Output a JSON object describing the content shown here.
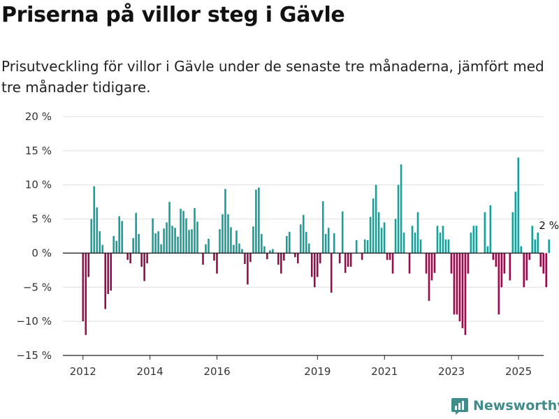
{
  "title": "Priserna på villor steg i Gävle",
  "subtitle": "Prisutveckling för villor i Gävle under de senaste tre månaderna, jämfört med tre månader tidigare.",
  "brand": "Newsworthy",
  "colors": {
    "positive": "#13a19a",
    "negative": "#9b0a4a",
    "grid": "#dddddd",
    "axis": "#222222",
    "brand": "#3f8c8a"
  },
  "chart_data": {
    "type": "bar",
    "ylim": [
      -15,
      20
    ],
    "yticks": [
      {
        "value": 20,
        "label": "20 %"
      },
      {
        "value": 15,
        "label": "15 %"
      },
      {
        "value": 10,
        "label": "10 %"
      },
      {
        "value": 5,
        "label": "5 %"
      },
      {
        "value": 0,
        "label": "0 %"
      },
      {
        "value": -5,
        "label": "−5 %"
      },
      {
        "value": -10,
        "label": "−10 %"
      },
      {
        "value": -15,
        "label": "−15 %"
      }
    ],
    "xlim": [
      2011.4,
      2025.75
    ],
    "xticks": [
      {
        "value": 2012,
        "label": "2012"
      },
      {
        "value": 2014,
        "label": "2014"
      },
      {
        "value": 2016,
        "label": "2016"
      },
      {
        "value": 2019,
        "label": "2019"
      },
      {
        "value": 2021,
        "label": "2021"
      },
      {
        "value": 2023,
        "label": "2023"
      },
      {
        "value": 2025,
        "label": "2025"
      }
    ],
    "start": 2012.0,
    "step": 0.0833,
    "values": [
      -10,
      -12,
      -3.5,
      5,
      9.8,
      6.7,
      3.2,
      1.2,
      -8.2,
      -6,
      -5.5,
      2.5,
      1.8,
      5.4,
      4.7,
      0,
      -1,
      -1.5,
      2.2,
      5.9,
      2.8,
      -2,
      -4.1,
      -1.5,
      0,
      5.1,
      2.9,
      3.2,
      1.3,
      3.6,
      4.5,
      7.5,
      4,
      3.7,
      2.4,
      6.5,
      6.2,
      5.1,
      3.4,
      3.5,
      6.6,
      4.6,
      0,
      -1.7,
      1.3,
      2.1,
      0,
      -1.1,
      -3,
      3.5,
      5.7,
      9.4,
      5.7,
      3.8,
      1.2,
      3.3,
      1.4,
      0.6,
      -1.6,
      -4.6,
      -1.3,
      3.9,
      9.3,
      9.6,
      2.8,
      1,
      -0.9,
      0.4,
      0.6,
      0,
      -1.7,
      -3,
      -1.1,
      2.5,
      3.1,
      0,
      -0.6,
      -1.5,
      4.2,
      5.6,
      3.1,
      1.4,
      -3.5,
      -5,
      -3.5,
      -1.5,
      7.6,
      2.8,
      3.7,
      -5.8,
      2.9,
      0,
      -1.5,
      6.1,
      -2.9,
      -2,
      -2,
      0,
      1.9,
      0,
      -1,
      2,
      1.9,
      5.3,
      8,
      10,
      6,
      3.7,
      4.5,
      -1,
      -1,
      -3,
      5,
      10,
      13,
      3,
      0,
      -3,
      4,
      3,
      6,
      2,
      0,
      -3,
      -7,
      -4,
      -2.9,
      4,
      3,
      4,
      2,
      2,
      -3,
      -9,
      -9,
      -10,
      -11,
      -12,
      -3,
      3,
      4,
      4,
      0,
      0,
      6,
      1,
      7,
      -1,
      -2,
      -9,
      -5,
      -3,
      0,
      -4,
      6,
      9,
      14,
      1,
      -5,
      -4,
      -1,
      4,
      2,
      3,
      -2,
      -3,
      -5,
      2
    ],
    "annotation": {
      "label": "2 %",
      "value": 2
    }
  }
}
